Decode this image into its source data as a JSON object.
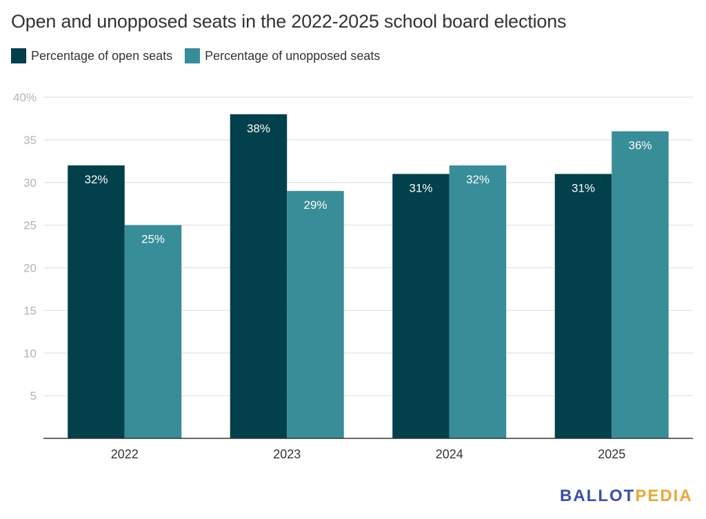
{
  "chart_data": {
    "type": "bar",
    "title": "Open and unopposed seats in the 2022-2025 school board elections",
    "xlabel": "",
    "ylabel": "",
    "categories": [
      "2022",
      "2023",
      "2024",
      "2025"
    ],
    "series": [
      {
        "name": "Percentage of open seats",
        "color": "#02404c",
        "values": [
          32,
          38,
          31,
          31
        ],
        "labels": [
          "32%",
          "38%",
          "31%",
          "31%"
        ]
      },
      {
        "name": "Percentage of unopposed seats",
        "color": "#378d98",
        "values": [
          25,
          29,
          32,
          36
        ],
        "labels": [
          "25%",
          "29%",
          "32%",
          "36%"
        ]
      }
    ],
    "ylim": [
      0,
      40
    ],
    "yticks": [
      5,
      10,
      15,
      20,
      25,
      30,
      35,
      40
    ],
    "ytick_labels": [
      "5",
      "10",
      "15",
      "20",
      "25",
      "30",
      "35",
      "40%"
    ],
    "grid": true,
    "legend": "top-left"
  },
  "branding": {
    "part1": "BALLOT",
    "part2": "PEDIA",
    "color1": "#3a4db5",
    "color2": "#f2a531"
  }
}
